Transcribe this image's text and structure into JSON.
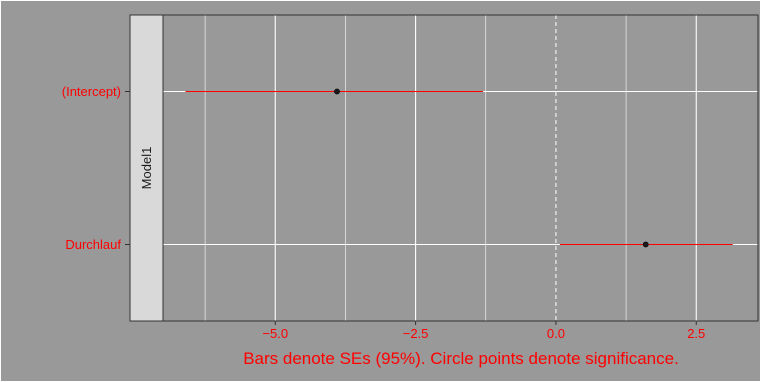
{
  "chart_data": {
    "type": "scatter",
    "facet_label": "Model1",
    "caption": "Bars denote SEs (95%). Circle points denote significance.",
    "x_ticks": [
      -5.0,
      -2.5,
      0.0,
      2.5
    ],
    "x_tick_labels": [
      "−5.0",
      "−2.5",
      "0.0",
      "2.5"
    ],
    "xlim": [
      -7.0,
      3.6
    ],
    "reference_line_x": 0,
    "categories": [
      "(Intercept)",
      "Durchlauf"
    ],
    "points": [
      {
        "term": "(Intercept)",
        "estimate": -3.9,
        "ci_low": -6.6,
        "ci_high": -1.3
      },
      {
        "term": "Durchlauf",
        "estimate": 1.6,
        "ci_low": 0.07,
        "ci_high": 3.15
      }
    ],
    "grid": true,
    "colors": {
      "panel_bg": "#999999",
      "grid": "#ffffff",
      "bar": "#ff0000",
      "text": "#ff0000",
      "strip_bg": "#d9d9d9",
      "point": "#1a1a1a"
    }
  }
}
